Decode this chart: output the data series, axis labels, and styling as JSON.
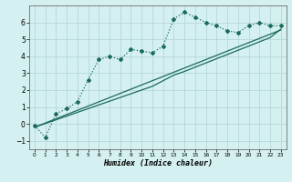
{
  "xlabel": "Humidex (Indice chaleur)",
  "bg_color": "#d4f0f0",
  "line_color": "#1a6b5a",
  "grid_color": "#b8d8d8",
  "x_data": [
    0,
    1,
    2,
    3,
    4,
    5,
    6,
    7,
    8,
    9,
    10,
    11,
    12,
    13,
    14,
    15,
    16,
    17,
    18,
    19,
    20,
    21,
    22,
    23
  ],
  "y_main": [
    -0.1,
    -0.8,
    0.6,
    0.9,
    1.3,
    2.6,
    3.8,
    4.0,
    3.8,
    4.4,
    4.3,
    4.2,
    4.6,
    6.2,
    6.6,
    6.3,
    6.0,
    5.8,
    5.5,
    5.4,
    5.8,
    6.0,
    5.8,
    5.8
  ],
  "y_line1": [
    -0.2,
    0.05,
    0.3,
    0.55,
    0.8,
    1.05,
    1.3,
    1.55,
    1.8,
    2.05,
    2.3,
    2.55,
    2.8,
    3.05,
    3.3,
    3.55,
    3.8,
    4.05,
    4.3,
    4.55,
    4.8,
    5.05,
    5.3,
    5.55
  ],
  "y_line2": [
    -0.2,
    0.02,
    0.24,
    0.46,
    0.68,
    0.9,
    1.12,
    1.34,
    1.56,
    1.78,
    2.0,
    2.22,
    2.55,
    2.88,
    3.1,
    3.35,
    3.6,
    3.85,
    4.1,
    4.35,
    4.6,
    4.85,
    5.1,
    5.6
  ],
  "ylim": [
    -1.5,
    7.0
  ],
  "xlim": [
    -0.5,
    23.5
  ],
  "yticks": [
    -1,
    0,
    1,
    2,
    3,
    4,
    5,
    6
  ],
  "xtick_labels": [
    "0",
    "1",
    "2",
    "3",
    "4",
    "5",
    "6",
    "7",
    "8",
    "9",
    "10",
    "11",
    "12",
    "13",
    "14",
    "15",
    "16",
    "17",
    "18",
    "19",
    "20",
    "21",
    "22",
    "23"
  ]
}
